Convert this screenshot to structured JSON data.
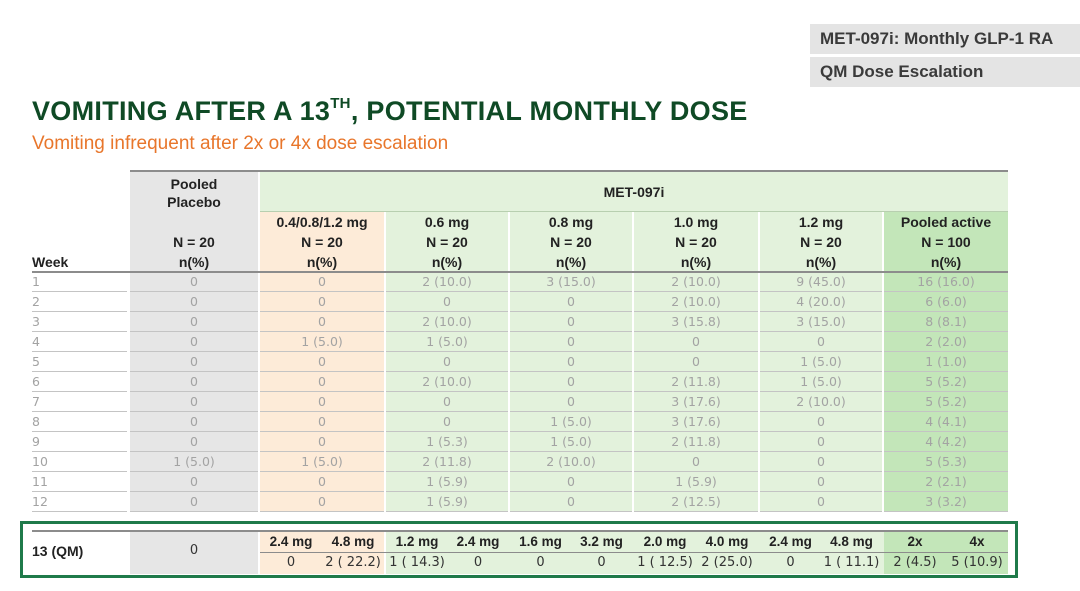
{
  "tags": [
    "MET-097i: Monthly GLP-1 RA",
    "QM Dose Escalation"
  ],
  "title": {
    "main": "VOMITING AFTER A 13",
    "sup": "TH",
    "rest": ", POTENTIAL MONTHLY DOSE"
  },
  "subtitle": "Vomiting infrequent after 2x or 4x dose escalation",
  "table": {
    "week_header": "Week",
    "placebo_header": [
      "Pooled",
      "Placebo"
    ],
    "group_header": "MET-097i",
    "columns": [
      {
        "dose": "",
        "n": "N = 20",
        "unit": "n(%)"
      },
      {
        "dose": "0.4/0.8/1.2 mg",
        "n": "N = 20",
        "unit": "n(%)"
      },
      {
        "dose": "0.6 mg",
        "n": "N = 20",
        "unit": "n(%)"
      },
      {
        "dose": "0.8 mg",
        "n": "N = 20",
        "unit": "n(%)"
      },
      {
        "dose": "1.0 mg",
        "n": "N = 20",
        "unit": "n(%)"
      },
      {
        "dose": "1.2 mg",
        "n": "N = 20",
        "unit": "n(%)"
      },
      {
        "dose": "Pooled active",
        "n": "N = 100",
        "unit": "n(%)"
      }
    ],
    "rows": [
      {
        "week": "1",
        "cells": [
          "0",
          "0",
          "2 (10.0)",
          "3 (15.0)",
          "2 (10.0)",
          "9 (45.0)",
          "16 (16.0)"
        ]
      },
      {
        "week": "2",
        "cells": [
          "0",
          "0",
          "0",
          "0",
          "2 (10.0)",
          "4 (20.0)",
          "6 (6.0)"
        ]
      },
      {
        "week": "3",
        "cells": [
          "0",
          "0",
          "2 (10.0)",
          "0",
          "3 (15.8)",
          "3 (15.0)",
          "8 (8.1)"
        ]
      },
      {
        "week": "4",
        "cells": [
          "0",
          "1 (5.0)",
          "1 (5.0)",
          "0",
          "0",
          "0",
          "2 (2.0)"
        ]
      },
      {
        "week": "5",
        "cells": [
          "0",
          "0",
          "0",
          "0",
          "0",
          "1 (5.0)",
          "1 (1.0)"
        ]
      },
      {
        "week": "6",
        "cells": [
          "0",
          "0",
          "2 (10.0)",
          "0",
          "2 (11.8)",
          "1 (5.0)",
          "5 (5.2)"
        ]
      },
      {
        "week": "7",
        "cells": [
          "0",
          "0",
          "0",
          "0",
          "3 (17.6)",
          "2 (10.0)",
          "5 (5.2)"
        ]
      },
      {
        "week": "8",
        "cells": [
          "0",
          "0",
          "0",
          "1 (5.0)",
          "3 (17.6)",
          "0",
          "4 (4.1)"
        ]
      },
      {
        "week": "9",
        "cells": [
          "0",
          "0",
          "1 (5.3)",
          "1 (5.0)",
          "2 (11.8)",
          "0",
          "4 (4.2)"
        ]
      },
      {
        "week": "10",
        "cells": [
          "1 (5.0)",
          "1 (5.0)",
          "2 (11.8)",
          "2 (10.0)",
          "0",
          "0",
          "5 (5.3)"
        ]
      },
      {
        "week": "11",
        "cells": [
          "0",
          "0",
          "1 (5.9)",
          "0",
          "1 (5.9)",
          "0",
          "2 (2.1)"
        ]
      },
      {
        "week": "12",
        "cells": [
          "0",
          "0",
          "1 (5.9)",
          "0",
          "2 (12.5)",
          "0",
          "3 (3.2)"
        ]
      }
    ]
  },
  "qm_row": {
    "label": "13 (QM)",
    "placebo": "0",
    "subheaders": [
      "2.4 mg",
      "4.8 mg",
      "1.2 mg",
      "2.4 mg",
      "1.6 mg",
      "3.2 mg",
      "2.0 mg",
      "4.0 mg",
      "2.4 mg",
      "4.8 mg",
      "2x",
      "4x"
    ],
    "values": [
      "0",
      "2 ( 22.2)",
      "1 ( 14.3)",
      "0",
      "0",
      "0",
      "1 ( 12.5)",
      "2 (25.0)",
      "0",
      "1 ( 11.1)",
      "2 (4.5)",
      "5 (10.9)"
    ]
  },
  "colors": {
    "title": "#0f4a25",
    "subtitle": "#e8762b",
    "placebo_bg": "#e6e6e6",
    "orange_bg": "#fdebd8",
    "green_light": "#e3f2dc",
    "green_mid": "#c3e6b9",
    "frame": "#1f7a4a"
  }
}
